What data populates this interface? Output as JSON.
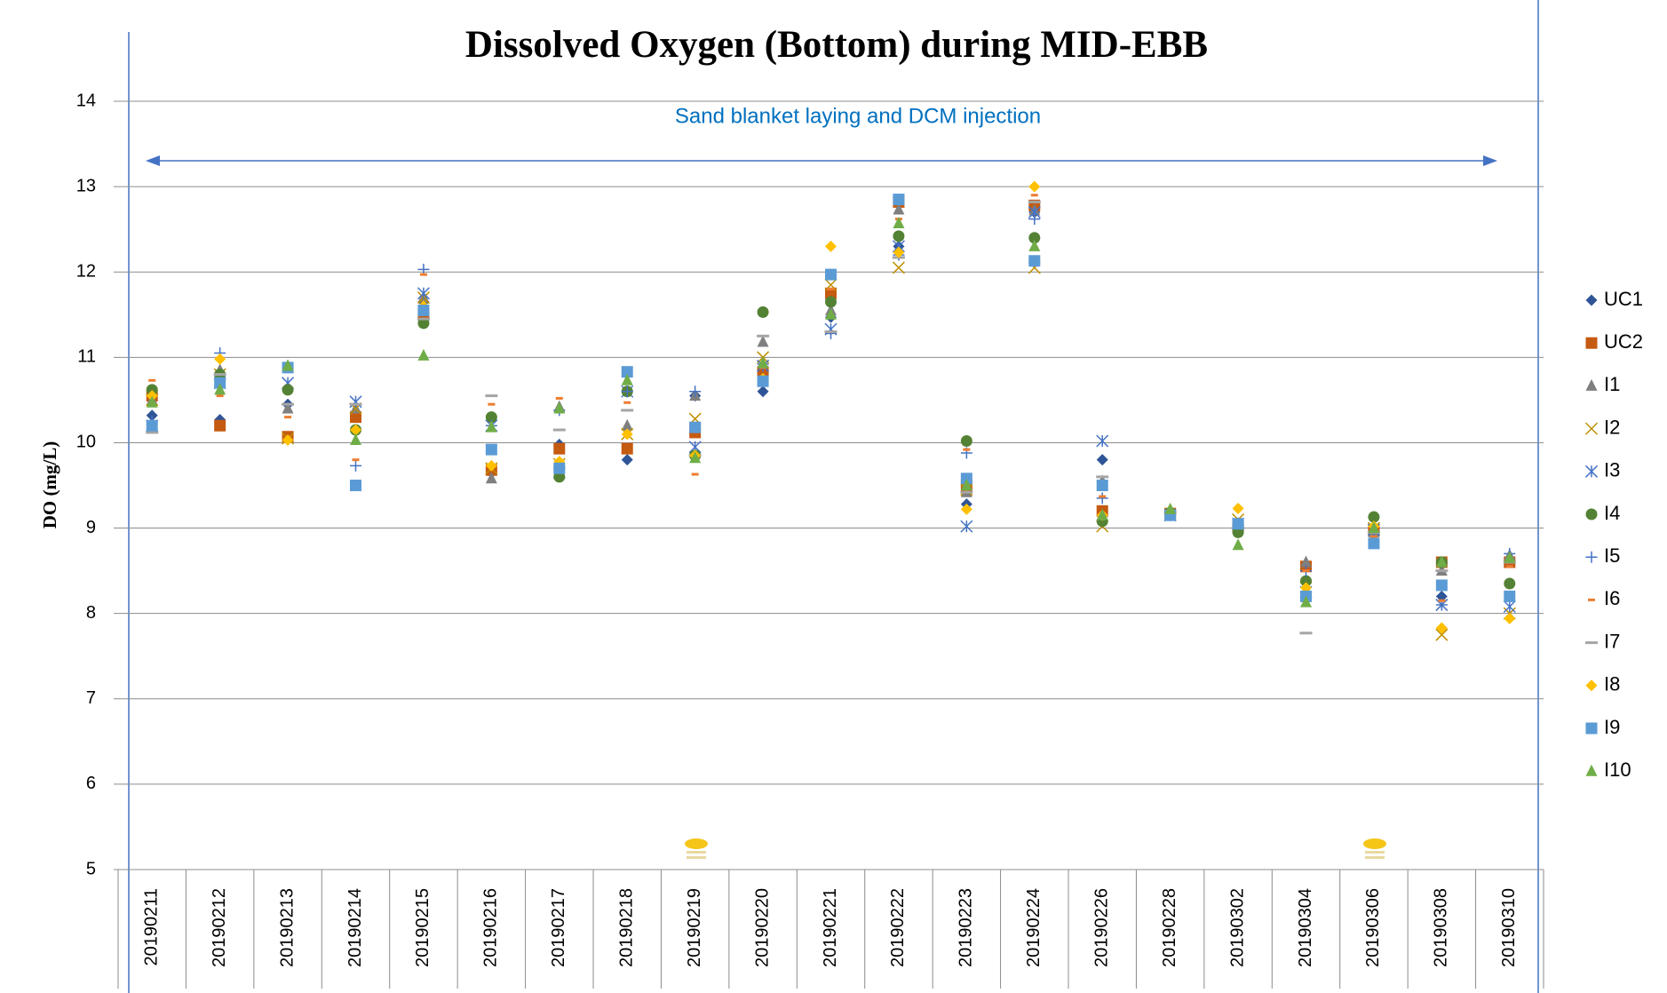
{
  "chart_data": {
    "type": "scatter",
    "title": "Dissolved Oxygen (Bottom) during MID-EBB",
    "ylabel": "DO (mg/L)",
    "annotation": "Sand blanket laying and DCM injection",
    "categories": [
      "20190211",
      "20190212",
      "20190213",
      "20190214",
      "20190215",
      "20190216",
      "20190217",
      "20190218",
      "20190219",
      "20190220",
      "20190221",
      "20190222",
      "20190223",
      "20190224",
      "20190226",
      "20190228",
      "20190302",
      "20190304",
      "20190306",
      "20190308",
      "20190310"
    ],
    "ylim": [
      5,
      14
    ],
    "yticks": [
      5,
      6,
      7,
      8,
      9,
      10,
      11,
      12,
      13,
      14
    ],
    "grid": true,
    "legend": "right",
    "series": [
      {
        "name": "UC1",
        "color": "#2f5597",
        "marker": "diamond",
        "values": [
          10.32,
          10.27,
          10.45,
          10.3,
          11.65,
          9.65,
          9.98,
          9.8,
          10.55,
          10.6,
          11.47,
          12.3,
          9.28,
          12.7,
          9.8,
          9.15,
          9.0,
          8.55,
          8.95,
          8.2,
          8.2
        ]
      },
      {
        "name": "UC2",
        "color": "#c55a11",
        "marker": "square",
        "values": [
          10.55,
          10.2,
          10.07,
          10.3,
          11.5,
          9.68,
          9.93,
          9.93,
          10.12,
          10.83,
          11.75,
          12.82,
          9.5,
          12.78,
          9.2,
          9.17,
          9.02,
          8.55,
          8.97,
          8.6,
          8.6
        ]
      },
      {
        "name": "I1",
        "color": "#7f7f7f",
        "marker": "triangle",
        "values": [
          10.5,
          10.85,
          10.4,
          10.4,
          11.7,
          9.58,
          10.42,
          10.2,
          10.55,
          11.18,
          11.55,
          12.73,
          9.42,
          12.72,
          9.55,
          9.2,
          9.05,
          8.6,
          8.95,
          8.5,
          8.68
        ]
      },
      {
        "name": "I2",
        "color": "#bf9000",
        "marker": "x",
        "values": [
          10.5,
          10.8,
          10.05,
          10.4,
          11.7,
          9.7,
          9.75,
          10.1,
          10.28,
          11.0,
          11.85,
          12.05,
          9.45,
          12.05,
          9.02,
          9.15,
          9.1,
          8.3,
          9.0,
          7.75,
          8.0
        ]
      },
      {
        "name": "I3",
        "color": "#4472c4",
        "marker": "star",
        "values": [
          10.2,
          10.7,
          10.7,
          10.48,
          11.75,
          10.2,
          9.65,
          10.6,
          9.95,
          10.9,
          11.33,
          12.3,
          9.02,
          12.7,
          10.02,
          9.15,
          9.05,
          8.25,
          8.98,
          8.1,
          8.08
        ]
      },
      {
        "name": "I4",
        "color": "#548235",
        "marker": "circle",
        "values": [
          10.62,
          10.8,
          10.62,
          10.15,
          11.4,
          10.3,
          9.6,
          10.6,
          9.85,
          11.53,
          11.65,
          12.42,
          10.02,
          12.4,
          9.08,
          9.18,
          8.95,
          8.38,
          9.13,
          8.6,
          8.35
        ]
      },
      {
        "name": "I5",
        "color": "#4472c4",
        "marker": "plus",
        "values": [
          10.25,
          11.05,
          10.9,
          9.73,
          12.03,
          10.2,
          10.38,
          10.6,
          10.6,
          10.92,
          11.28,
          12.2,
          9.88,
          12.62,
          9.35,
          9.15,
          9.05,
          8.5,
          8.95,
          8.1,
          8.7
        ]
      },
      {
        "name": "I6",
        "color": "#ed7d31",
        "marker": "dash",
        "values": [
          10.73,
          10.55,
          10.3,
          9.8,
          11.97,
          10.45,
          10.52,
          10.47,
          9.63,
          10.88,
          11.8,
          12.62,
          9.92,
          12.9,
          9.37,
          9.2,
          9.1,
          8.5,
          8.9,
          8.15,
          8.55
        ]
      },
      {
        "name": "I7",
        "color": "#a5a5a5",
        "marker": "longdash",
        "values": [
          10.12,
          10.8,
          10.45,
          10.45,
          11.45,
          10.55,
          10.15,
          10.38,
          9.85,
          11.25,
          11.3,
          12.17,
          9.42,
          12.82,
          9.6,
          9.18,
          9.0,
          7.77,
          8.95,
          8.5,
          8.6
        ]
      },
      {
        "name": "I8",
        "color": "#ffc000",
        "marker": "diamond",
        "values": [
          10.55,
          10.98,
          10.03,
          10.15,
          11.6,
          9.73,
          9.78,
          10.1,
          9.85,
          10.75,
          12.3,
          12.23,
          9.22,
          13.0,
          9.15,
          9.17,
          9.23,
          8.3,
          9.02,
          7.83,
          7.94
        ]
      },
      {
        "name": "I9",
        "color": "#5b9bd5",
        "marker": "square",
        "values": [
          10.2,
          10.7,
          10.88,
          9.5,
          11.55,
          9.92,
          9.7,
          10.83,
          10.18,
          10.72,
          11.97,
          12.85,
          9.58,
          12.13,
          9.5,
          9.15,
          9.05,
          8.2,
          8.82,
          8.33,
          8.2
        ]
      },
      {
        "name": "I10",
        "color": "#70ad47",
        "marker": "triangle",
        "values": [
          10.47,
          10.62,
          10.9,
          10.03,
          11.02,
          10.18,
          10.4,
          10.73,
          9.82,
          10.93,
          11.5,
          12.57,
          9.5,
          12.3,
          9.15,
          9.22,
          8.8,
          8.13,
          9.0,
          8.6,
          8.65
        ]
      }
    ]
  }
}
